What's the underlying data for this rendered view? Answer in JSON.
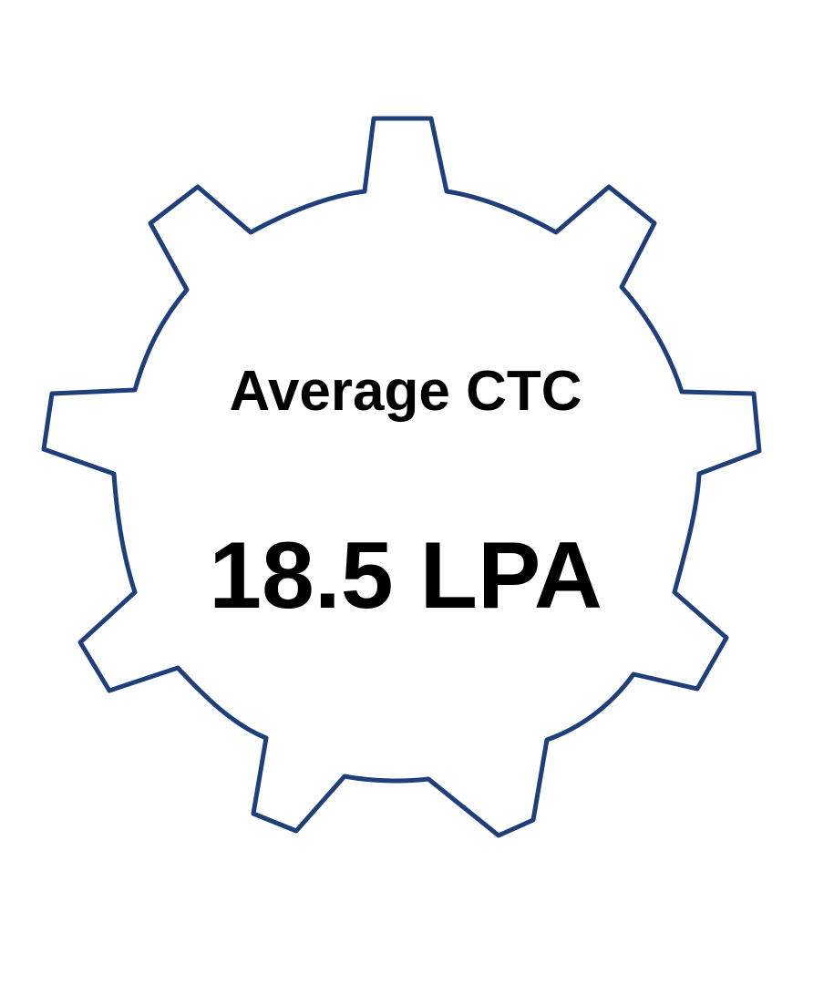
{
  "badge": {
    "label": "Average CTC",
    "value": "18.5 LPA",
    "icon": "gear-icon",
    "outline_color": "#1f3f7a",
    "text_color": "#000000",
    "background_color": "#ffffff"
  }
}
